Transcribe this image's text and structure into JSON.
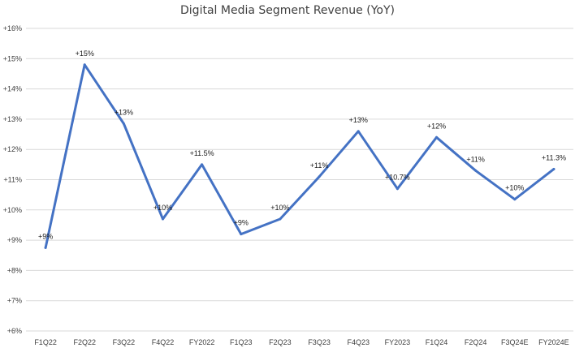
{
  "chart_data": {
    "type": "line",
    "title": "Digital Media Segment Revenue (YoY)",
    "xlabel": "",
    "ylabel": "",
    "categories": [
      "F1Q22",
      "F2Q22",
      "F3Q22",
      "F4Q22",
      "FY2022",
      "F1Q23",
      "F2Q23",
      "F3Q23",
      "F4Q23",
      "FY2023",
      "F1Q24",
      "F2Q24",
      "F3Q24E",
      "FY2024E"
    ],
    "ylim": [
      6,
      16
    ],
    "yticks": [
      6,
      7,
      8,
      9,
      10,
      11,
      12,
      13,
      14,
      15,
      16
    ],
    "ytick_labels": [
      "+6%",
      "+7%",
      "+8%",
      "+9%",
      "+10%",
      "+11%",
      "+12%",
      "+13%",
      "+14%",
      "+15%",
      "+16%"
    ],
    "series": [
      {
        "values": [
          8.75,
          14.8,
          12.85,
          9.7,
          11.5,
          9.2,
          9.7,
          11.1,
          12.6,
          10.7,
          12.4,
          11.3,
          10.35,
          11.35
        ],
        "labels": [
          "+9%",
          "+15%",
          "+13%",
          "+10%",
          "+11.5%",
          "+9%",
          "+10%",
          "+11%",
          "+13%",
          "+10.7%",
          "+12%",
          "+11%",
          "+10%",
          "+11.3%"
        ]
      }
    ],
    "grid": true,
    "legend": "none",
    "line_color": "#4472C4"
  }
}
